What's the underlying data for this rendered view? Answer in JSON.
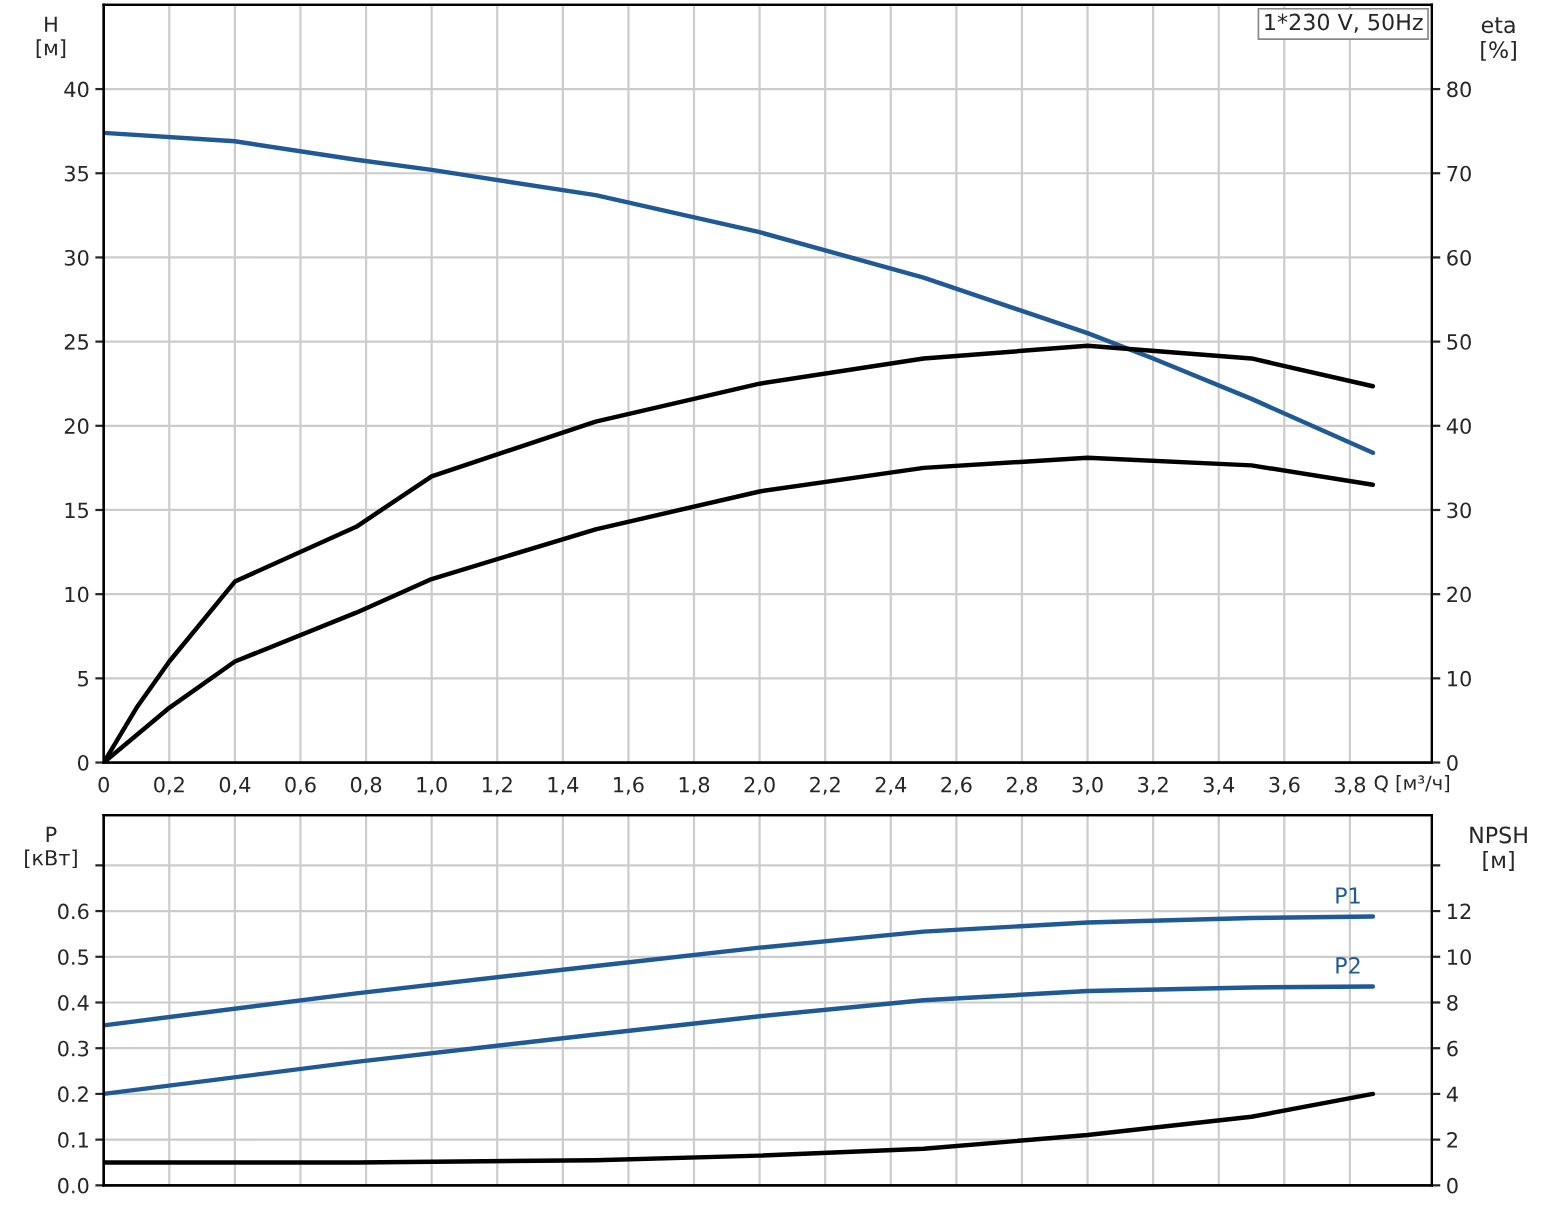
{
  "chart_data": [
    {
      "type": "line",
      "xlabel": "Q [м³/ч]",
      "ylabel": "H\n[м]",
      "y2label": "eta\n[%]",
      "annotations": [
        "1*230 V, 50Hz"
      ],
      "grid": true,
      "xlim": [
        0,
        4.05
      ],
      "ylim": [
        0,
        45
      ],
      "y2lim": [
        0,
        90
      ],
      "xticks": [
        0,
        {
          "value": 0.2,
          "label": "0,2"
        },
        {
          "value": 0.4,
          "label": "0,4"
        },
        {
          "value": 0.6,
          "label": "0,6"
        },
        {
          "value": 0.8,
          "label": "0,8"
        },
        {
          "value": 1.0,
          "label": "1,0"
        },
        {
          "value": 1.2,
          "label": "1,2"
        },
        {
          "value": 1.4,
          "label": "1,4"
        },
        {
          "value": 1.6,
          "label": "1,6"
        },
        {
          "value": 1.8,
          "label": "1,8"
        },
        {
          "value": 2.0,
          "label": "2,0"
        },
        {
          "value": 2.2,
          "label": "2,2"
        },
        {
          "value": 2.4,
          "label": "2,4"
        },
        {
          "value": 2.6,
          "label": "2,6"
        },
        {
          "value": 2.8,
          "label": "2,8"
        },
        {
          "value": 3.0,
          "label": "3,0"
        },
        {
          "value": 3.2,
          "label": "3,2"
        },
        {
          "value": 3.4,
          "label": "3,4"
        },
        {
          "value": 3.6,
          "label": "3,6"
        },
        {
          "value": 3.8,
          "label": "3,8"
        }
      ],
      "yticks": [
        0,
        5,
        10,
        15,
        20,
        25,
        30,
        35,
        40
      ],
      "y2ticks": [
        0,
        10,
        20,
        30,
        40,
        50,
        60,
        70,
        80
      ],
      "series": [
        {
          "color": "#1f5a96",
          "x": [
            0,
            0.4,
            0.77,
            1.0,
            1.5,
            2.0,
            2.5,
            3.0,
            3.2,
            3.5,
            3.87
          ],
          "values": [
            37.4,
            36.9,
            35.8,
            35.2,
            33.7,
            31.5,
            28.8,
            25.5,
            24.0,
            21.6,
            18.4
          ]
        },
        {
          "color": "#000000",
          "axis": "y2",
          "x": [
            0,
            0.1,
            0.2,
            0.4,
            0.77,
            1.0,
            1.5,
            2.0,
            2.5,
            3.0,
            3.5,
            3.87
          ],
          "values": [
            0,
            6.5,
            12,
            21.5,
            28,
            34,
            40.5,
            45,
            48,
            49.5,
            48,
            44.7
          ]
        },
        {
          "color": "#000000",
          "axis": "y2",
          "x": [
            0,
            0.2,
            0.4,
            0.77,
            1.0,
            1.5,
            2.0,
            2.5,
            3.0,
            3.5,
            3.87
          ],
          "values": [
            0,
            6.5,
            12,
            17.8,
            21.8,
            27.7,
            32.2,
            35,
            36.2,
            35.3,
            33
          ]
        }
      ]
    },
    {
      "type": "line",
      "ylabel": "P\n[кВт]",
      "y2label": "NPSH\n[м]",
      "grid": true,
      "tick_labels": "y",
      "xlim": [
        0,
        4.05
      ],
      "ylim": [
        0,
        0.81
      ],
      "y2lim": [
        0,
        16.2
      ],
      "xticks": [
        {
          "value": 0,
          "label": null
        },
        {
          "value": 0.2,
          "label": null
        },
        {
          "value": 0.4,
          "label": null
        },
        {
          "value": 0.6,
          "label": null
        },
        {
          "value": 0.8,
          "label": null
        },
        {
          "value": 1.0,
          "label": null
        },
        {
          "value": 1.2,
          "label": null
        },
        {
          "value": 1.4,
          "label": null
        },
        {
          "value": 1.6,
          "label": null
        },
        {
          "value": 1.8,
          "label": null
        },
        {
          "value": 2.0,
          "label": null
        },
        {
          "value": 2.2,
          "label": null
        },
        {
          "value": 2.4,
          "label": null
        },
        {
          "value": 2.6,
          "label": null
        },
        {
          "value": 2.8,
          "label": null
        },
        {
          "value": 3.0,
          "label": null
        },
        {
          "value": 3.2,
          "label": null
        },
        {
          "value": 3.4,
          "label": null
        },
        {
          "value": 3.6,
          "label": null
        },
        {
          "value": 3.8,
          "label": null
        }
      ],
      "yticks": [
        {
          "value": 0,
          "label": "0.0"
        },
        0.1,
        0.2,
        0.3,
        0.4,
        0.5,
        0.6,
        {
          "value": 0.7,
          "label": null
        }
      ],
      "y2ticks": [
        0,
        2,
        4,
        6,
        8,
        10,
        12,
        {
          "value": 14,
          "label": null
        }
      ],
      "series": [
        {
          "name": "P1",
          "color": "#1f5a96",
          "x": [
            0,
            0.77,
            1.5,
            2.0,
            2.5,
            3.0,
            3.5,
            3.87
          ],
          "values": [
            0.35,
            0.42,
            0.48,
            0.52,
            0.555,
            0.575,
            0.585,
            0.588
          ]
        },
        {
          "name": "P2",
          "color": "#1f5a96",
          "x": [
            0,
            0.77,
            1.5,
            2.0,
            2.5,
            3.0,
            3.5,
            3.87
          ],
          "values": [
            0.2,
            0.27,
            0.33,
            0.37,
            0.405,
            0.425,
            0.433,
            0.435
          ]
        },
        {
          "color": "#000000",
          "axis": "y2",
          "x": [
            0,
            0.77,
            1.5,
            2.0,
            2.5,
            3.0,
            3.5,
            3.87
          ],
          "values": [
            1.0,
            1.0,
            1.1,
            1.3,
            1.6,
            2.2,
            3.0,
            4.0
          ]
        }
      ]
    }
  ]
}
